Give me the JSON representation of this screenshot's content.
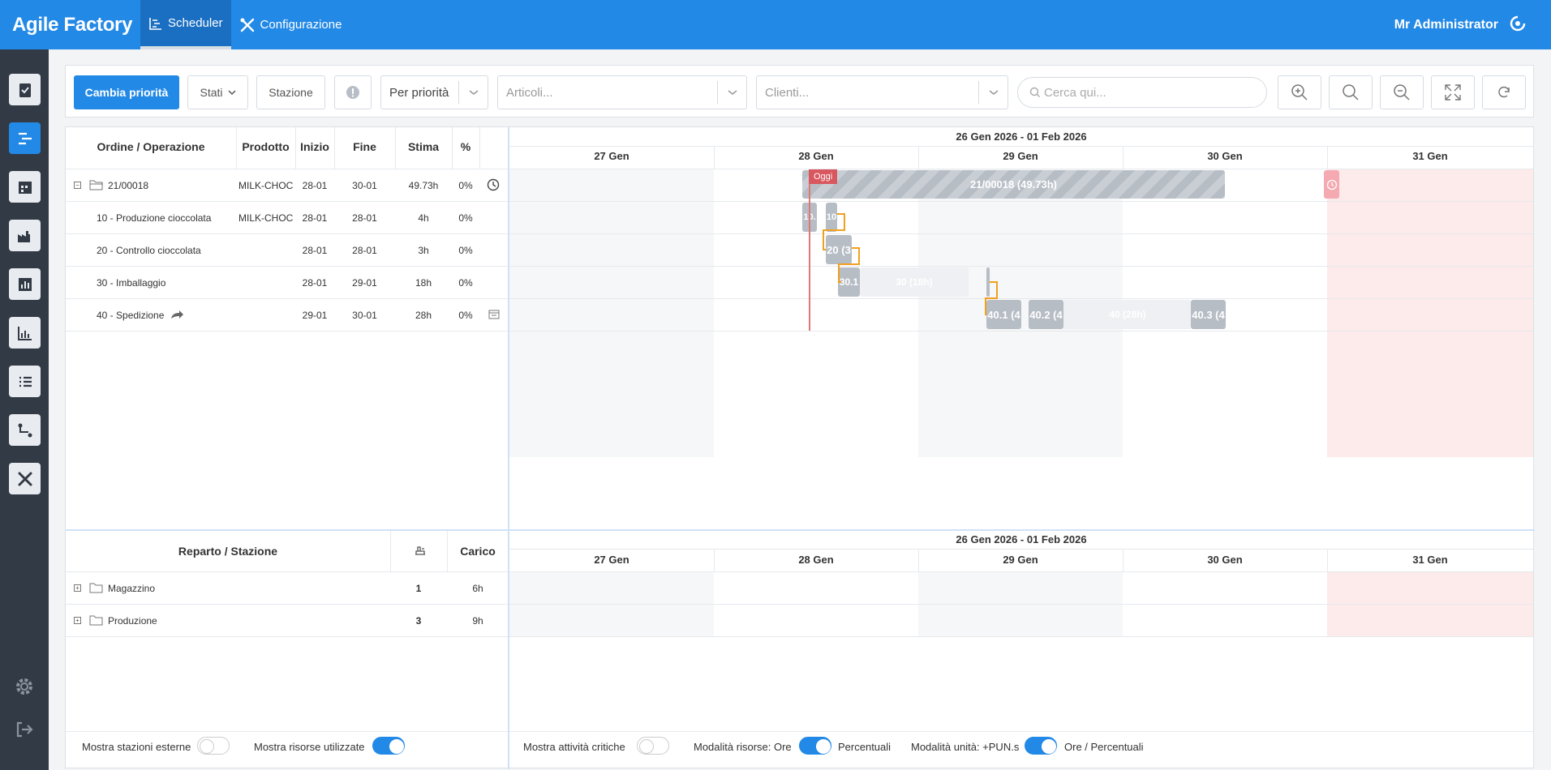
{
  "app": {
    "title": "Agile Factory",
    "tabs": [
      {
        "label": "Scheduler",
        "active": true
      },
      {
        "label": "Configurazione",
        "active": false
      }
    ],
    "user": "Mr Administrator"
  },
  "toolbar": {
    "priority_button": "Cambia priorità",
    "stati_button": "Stati",
    "stazione_button": "Stazione",
    "sort_select": "Per priorità",
    "articoli_placeholder": "Articoli...",
    "clienti_placeholder": "Clienti...",
    "search_placeholder": "Cerca qui..."
  },
  "orders_grid": {
    "headers": {
      "order": "Ordine / Operazione",
      "product": "Prodotto",
      "start": "Inizio",
      "end": "Fine",
      "estimate": "Stima",
      "percent": "%"
    },
    "rows": [
      {
        "name": "21/00018",
        "product": "MILK-CHOC",
        "start": "28-01",
        "end": "30-01",
        "estimate": "49.73h",
        "percent": "0%"
      },
      {
        "name": "10 - Produzione cioccolata",
        "product": "MILK-CHOC",
        "start": "28-01",
        "end": "28-01",
        "estimate": "4h",
        "percent": "0%"
      },
      {
        "name": "20 - Controllo cioccolata",
        "product": "",
        "start": "28-01",
        "end": "28-01",
        "estimate": "3h",
        "percent": "0%"
      },
      {
        "name": "30 - Imballaggio",
        "product": "",
        "start": "28-01",
        "end": "29-01",
        "estimate": "18h",
        "percent": "0%"
      },
      {
        "name": "40 - Spedizione",
        "product": "",
        "start": "29-01",
        "end": "30-01",
        "estimate": "28h",
        "percent": "0%"
      }
    ]
  },
  "gantt": {
    "week_label": "26 Gen 2026 - 01 Feb 2026",
    "days": [
      "27 Gen",
      "28 Gen",
      "29 Gen",
      "30 Gen",
      "31 Gen"
    ],
    "today_label": "Oggi",
    "bars": {
      "summary": "21/00018 (49.73h)",
      "op10a": "10.",
      "op10b": "10",
      "op20": "20 (3",
      "op30a": "30.1",
      "op30ghost": "30 (18h)",
      "op40a": "40.1 (4",
      "op40b": "40.2 (4",
      "op40ghost": "40 (28h)",
      "op40c": "40.3 (4"
    }
  },
  "stations_grid": {
    "headers": {
      "name": "Reparto / Stazione",
      "load": "Carico"
    },
    "rows": [
      {
        "name": "Magazzino",
        "count": "1",
        "load": "6h"
      },
      {
        "name": "Produzione",
        "count": "3",
        "load": "9h"
      }
    ]
  },
  "footer": {
    "external_stations": "Mostra stazioni esterne",
    "used_resources": "Mostra risorse utilizzate",
    "critical_activities": "Mostra attività critiche",
    "resource_mode": "Modalità risorse: Ore",
    "resource_mode_alt": "Percentuali",
    "unit_mode": "Modalità unità: +PUN.s",
    "unit_mode_alt": "Ore / Percentuali"
  },
  "colors": {
    "accent": "#2389e6",
    "sidebar": "#323a45",
    "weekend": "#fdeaea",
    "bar": "#b7bdc5",
    "link": "#f0a020"
  }
}
